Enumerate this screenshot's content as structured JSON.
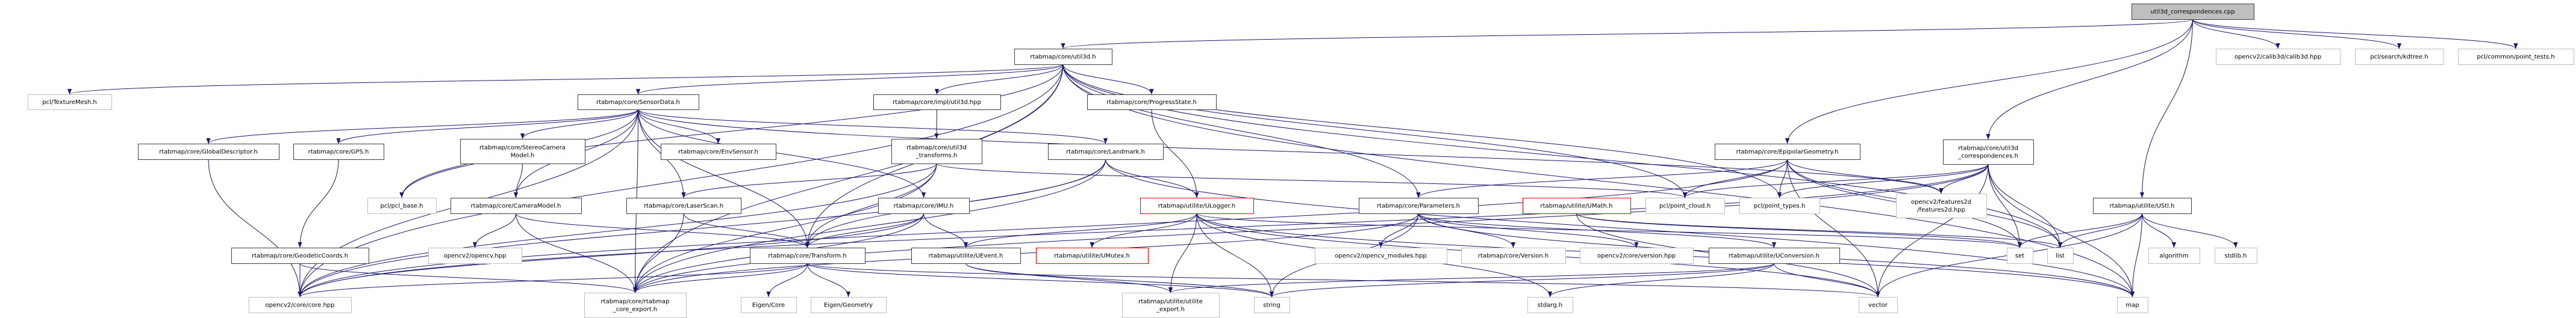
{
  "graph": {
    "type": "include-dependency-graph",
    "edge_color": "#191970",
    "nodes": [
      {
        "id": "cpp",
        "label": [
          "util3d_correspondences.cpp"
        ],
        "kind": "root"
      },
      {
        "id": "util3d",
        "label": [
          "rtabmap/core/util3d.h"
        ],
        "kind": "internal"
      },
      {
        "id": "calib3d",
        "label": [
          "opencv2/calib3d/calib3d.hpp"
        ],
        "kind": "external"
      },
      {
        "id": "kdtree",
        "label": [
          "pcl/search/kdtree.h"
        ],
        "kind": "external"
      },
      {
        "id": "pointtests",
        "label": [
          "pcl/common/point_tests.h"
        ],
        "kind": "external"
      },
      {
        "id": "texturemesh",
        "label": [
          "pcl/TextureMesh.h"
        ],
        "kind": "external"
      },
      {
        "id": "sensordata",
        "label": [
          "rtabmap/core/SensorData.h"
        ],
        "kind": "internal"
      },
      {
        "id": "implutil3d",
        "label": [
          "rtabmap/core/impl/util3d.hpp"
        ],
        "kind": "internal"
      },
      {
        "id": "progress",
        "label": [
          "rtabmap/core/ProgressState.h"
        ],
        "kind": "internal"
      },
      {
        "id": "globaldesc",
        "label": [
          "rtabmap/core/GlobalDescriptor.h"
        ],
        "kind": "internal"
      },
      {
        "id": "gps",
        "label": [
          "rtabmap/core/GPS.h"
        ],
        "kind": "internal"
      },
      {
        "id": "stereocam",
        "label": [
          "rtabmap/core/StereoCamera",
          "Model.h"
        ],
        "kind": "internal"
      },
      {
        "id": "envsensor",
        "label": [
          "rtabmap/core/EnvSensor.h"
        ],
        "kind": "internal"
      },
      {
        "id": "util3dtf",
        "label": [
          "rtabmap/core/util3d",
          "_transforms.h"
        ],
        "kind": "internal"
      },
      {
        "id": "landmark",
        "label": [
          "rtabmap/core/Landmark.h"
        ],
        "kind": "internal"
      },
      {
        "id": "epipolar",
        "label": [
          "rtabmap/core/EpipolarGeometry.h"
        ],
        "kind": "internal"
      },
      {
        "id": "util3dcorr",
        "label": [
          "rtabmap/core/util3d",
          "_correspondences.h"
        ],
        "kind": "internal"
      },
      {
        "id": "pclbase",
        "label": [
          "pcl/pcl_base.h"
        ],
        "kind": "external"
      },
      {
        "id": "cameramodel",
        "label": [
          "rtabmap/core/CameraModel.h"
        ],
        "kind": "internal"
      },
      {
        "id": "laserscan",
        "label": [
          "rtabmap/core/LaserScan.h"
        ],
        "kind": "internal"
      },
      {
        "id": "imu",
        "label": [
          "rtabmap/core/IMU.h"
        ],
        "kind": "internal"
      },
      {
        "id": "ulogger",
        "label": [
          "rtabmap/utilite/ULogger.h"
        ],
        "kind": "missing"
      },
      {
        "id": "parameters",
        "label": [
          "rtabmap/core/Parameters.h"
        ],
        "kind": "internal"
      },
      {
        "id": "umath",
        "label": [
          "rtabmap/utilite/UMath.h"
        ],
        "kind": "missing"
      },
      {
        "id": "pointcloud",
        "label": [
          "pcl/point_cloud.h"
        ],
        "kind": "external"
      },
      {
        "id": "pointtypes",
        "label": [
          "pcl/point_types.h"
        ],
        "kind": "external"
      },
      {
        "id": "features2d",
        "label": [
          "opencv2/features2d",
          "/features2d.hpp"
        ],
        "kind": "external"
      },
      {
        "id": "ustl",
        "label": [
          "rtabmap/utilite/UStl.h"
        ],
        "kind": "internal"
      },
      {
        "id": "geodetic",
        "label": [
          "rtabmap/core/GeodeticCoords.h"
        ],
        "kind": "internal"
      },
      {
        "id": "opencv",
        "label": [
          "opencv2/opencv.hpp"
        ],
        "kind": "external"
      },
      {
        "id": "transform",
        "label": [
          "rtabmap/core/Transform.h"
        ],
        "kind": "internal"
      },
      {
        "id": "uevent",
        "label": [
          "rtabmap/utilite/UEvent.h"
        ],
        "kind": "internal"
      },
      {
        "id": "umutex",
        "label": [
          "rtabmap/utilite/UMutex.h"
        ],
        "kind": "missing"
      },
      {
        "id": "cvmodules",
        "label": [
          "opencv2/opencv_modules.hpp"
        ],
        "kind": "external"
      },
      {
        "id": "version",
        "label": [
          "rtabmap/core/Version.h"
        ],
        "kind": "external"
      },
      {
        "id": "cvversion",
        "label": [
          "opencv2/core/version.hpp"
        ],
        "kind": "external"
      },
      {
        "id": "uconversion",
        "label": [
          "rtabmap/utilite/UConversion.h"
        ],
        "kind": "internal"
      },
      {
        "id": "set",
        "label": [
          "set"
        ],
        "kind": "external"
      },
      {
        "id": "list",
        "label": [
          "list"
        ],
        "kind": "external"
      },
      {
        "id": "algorithm",
        "label": [
          "algorithm"
        ],
        "kind": "external"
      },
      {
        "id": "stdlib",
        "label": [
          "stdlib.h"
        ],
        "kind": "external"
      },
      {
        "id": "corehpp",
        "label": [
          "opencv2/core/core.hpp"
        ],
        "kind": "external"
      },
      {
        "id": "coreexport",
        "label": [
          "rtabmap/core/rtabmap",
          "_core_export.h"
        ],
        "kind": "external"
      },
      {
        "id": "eigencore",
        "label": [
          "Eigen/Core"
        ],
        "kind": "external"
      },
      {
        "id": "eigengeom",
        "label": [
          "Eigen/Geometry"
        ],
        "kind": "external"
      },
      {
        "id": "utilexport",
        "label": [
          "rtabmap/utilite/utilite",
          "_export.h"
        ],
        "kind": "external"
      },
      {
        "id": "string",
        "label": [
          "string"
        ],
        "kind": "external"
      },
      {
        "id": "stdarg",
        "label": [
          "stdarg.h"
        ],
        "kind": "external"
      },
      {
        "id": "vector",
        "label": [
          "vector"
        ],
        "kind": "external"
      },
      {
        "id": "map",
        "label": [
          "map"
        ],
        "kind": "external"
      }
    ],
    "edges": [
      [
        "cpp",
        "util3d"
      ],
      [
        "cpp",
        "util3dcorr"
      ],
      [
        "cpp",
        "epipolar"
      ],
      [
        "cpp",
        "ustl"
      ],
      [
        "cpp",
        "calib3d"
      ],
      [
        "cpp",
        "kdtree"
      ],
      [
        "cpp",
        "pointtests"
      ],
      [
        "util3d",
        "sensordata"
      ],
      [
        "util3d",
        "implutil3d"
      ],
      [
        "util3d",
        "progress"
      ],
      [
        "util3d",
        "transform"
      ],
      [
        "util3d",
        "parameters"
      ],
      [
        "util3d",
        "pointcloud"
      ],
      [
        "util3d",
        "pointtypes"
      ],
      [
        "util3d",
        "texturemesh"
      ],
      [
        "util3d",
        "corehpp"
      ],
      [
        "util3d",
        "coreexport"
      ],
      [
        "util3d",
        "pclbase"
      ],
      [
        "util3d",
        "list"
      ],
      [
        "util3d",
        "map"
      ],
      [
        "sensordata",
        "globaldesc"
      ],
      [
        "sensordata",
        "gps"
      ],
      [
        "sensordata",
        "stereocam"
      ],
      [
        "sensordata",
        "cameramodel"
      ],
      [
        "sensordata",
        "envsensor"
      ],
      [
        "sensordata",
        "laserscan"
      ],
      [
        "sensordata",
        "imu"
      ],
      [
        "sensordata",
        "transform"
      ],
      [
        "sensordata",
        "landmark"
      ],
      [
        "sensordata",
        "corehpp"
      ],
      [
        "sensordata",
        "coreexport"
      ],
      [
        "sensordata",
        "pclbase"
      ],
      [
        "sensordata",
        "features2d"
      ],
      [
        "globaldesc",
        "corehpp"
      ],
      [
        "gps",
        "geodetic"
      ],
      [
        "geodetic",
        "corehpp"
      ],
      [
        "geodetic",
        "coreexport"
      ],
      [
        "stereocam",
        "cameramodel"
      ],
      [
        "cameramodel",
        "opencv"
      ],
      [
        "cameramodel",
        "coreexport"
      ],
      [
        "cameramodel",
        "transform"
      ],
      [
        "laserscan",
        "coreexport"
      ],
      [
        "laserscan",
        "transform"
      ],
      [
        "imu",
        "coreexport"
      ],
      [
        "imu",
        "transform"
      ],
      [
        "imu",
        "uevent"
      ],
      [
        "imu",
        "corehpp"
      ],
      [
        "implutil3d",
        "util3dtf"
      ],
      [
        "util3dtf",
        "transform"
      ],
      [
        "util3dtf",
        "laserscan"
      ],
      [
        "util3dtf",
        "coreexport"
      ],
      [
        "util3dtf",
        "pointcloud"
      ],
      [
        "util3dtf",
        "corehpp"
      ],
      [
        "landmark",
        "ulogger"
      ],
      [
        "landmark",
        "transform"
      ],
      [
        "landmark",
        "coreexport"
      ],
      [
        "landmark",
        "corehpp"
      ],
      [
        "landmark",
        "map"
      ],
      [
        "progress",
        "ulogger"
      ],
      [
        "ulogger",
        "uevent"
      ],
      [
        "ulogger",
        "umutex"
      ],
      [
        "ulogger",
        "utilexport"
      ],
      [
        "ulogger",
        "string"
      ],
      [
        "ulogger",
        "stdarg"
      ],
      [
        "ulogger",
        "map"
      ],
      [
        "ulogger",
        "set"
      ],
      [
        "ulogger",
        "vector"
      ],
      [
        "transform",
        "eigencore"
      ],
      [
        "transform",
        "eigengeom"
      ],
      [
        "transform",
        "coreexport"
      ],
      [
        "transform",
        "corehpp"
      ],
      [
        "transform",
        "vector"
      ],
      [
        "transform",
        "string"
      ],
      [
        "uevent",
        "utilexport"
      ],
      [
        "uevent",
        "string"
      ],
      [
        "parameters",
        "cvmodules"
      ],
      [
        "parameters",
        "version"
      ],
      [
        "parameters",
        "cvversion"
      ],
      [
        "parameters",
        "uconversion"
      ],
      [
        "parameters",
        "string"
      ],
      [
        "parameters",
        "map"
      ],
      [
        "parameters",
        "coreexport"
      ],
      [
        "umath",
        "list"
      ],
      [
        "umath",
        "vector"
      ],
      [
        "umath",
        "set"
      ],
      [
        "uconversion",
        "string"
      ],
      [
        "uconversion",
        "vector"
      ],
      [
        "uconversion",
        "stdarg"
      ],
      [
        "uconversion",
        "utilexport"
      ],
      [
        "epipolar",
        "parameters"
      ],
      [
        "epipolar",
        "pointcloud"
      ],
      [
        "epipolar",
        "pointtypes"
      ],
      [
        "epipolar",
        "features2d"
      ],
      [
        "epipolar",
        "list"
      ],
      [
        "epipolar",
        "set"
      ],
      [
        "epipolar",
        "vector"
      ],
      [
        "epipolar",
        "corehpp"
      ],
      [
        "util3dcorr",
        "features2d"
      ],
      [
        "util3dcorr",
        "set"
      ],
      [
        "util3dcorr",
        "list"
      ],
      [
        "util3dcorr",
        "pointcloud"
      ],
      [
        "util3dcorr",
        "pointtypes"
      ],
      [
        "util3dcorr",
        "coreexport"
      ],
      [
        "util3dcorr",
        "corehpp"
      ],
      [
        "util3dcorr",
        "map"
      ],
      [
        "util3dcorr",
        "vector"
      ],
      [
        "ustl",
        "set"
      ],
      [
        "ustl",
        "list"
      ],
      [
        "ustl",
        "algorithm"
      ],
      [
        "ustl",
        "stdlib"
      ],
      [
        "ustl",
        "vector"
      ],
      [
        "ustl",
        "map"
      ]
    ]
  }
}
